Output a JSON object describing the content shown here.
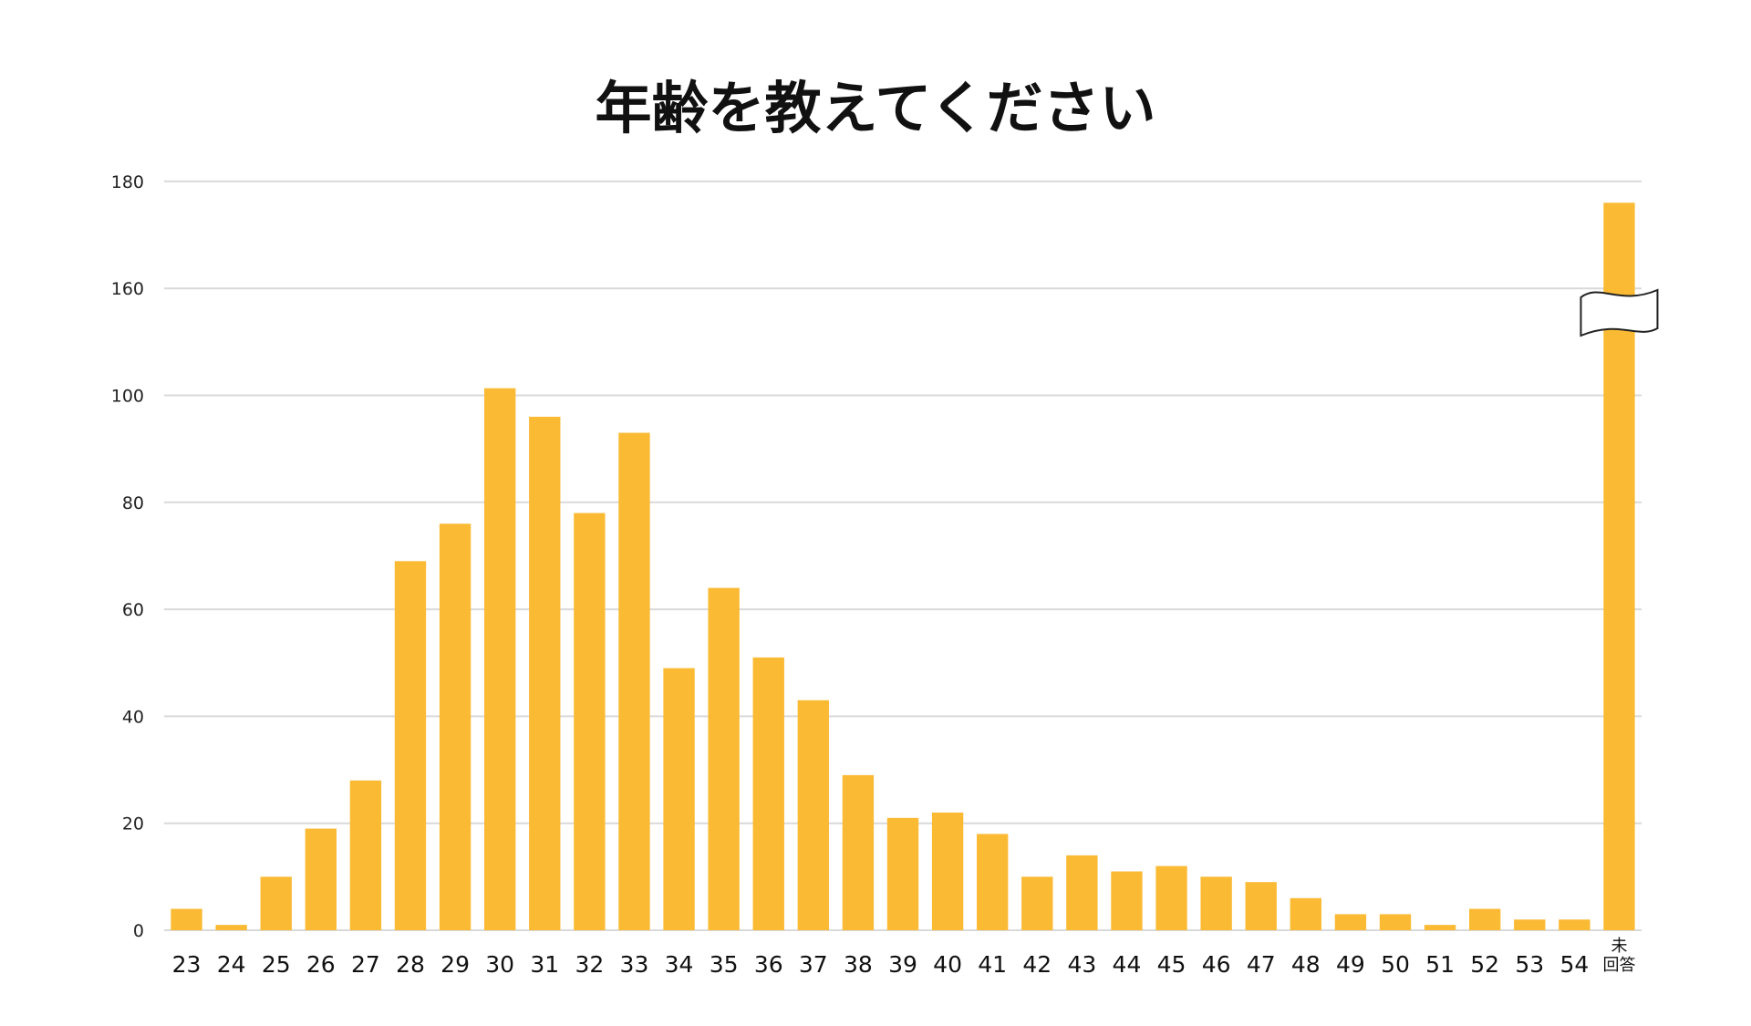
{
  "chart_data": {
    "type": "bar",
    "title": "年齢を教えてください",
    "xlabel": "",
    "ylabel": "",
    "y_tick_labels": [
      "0",
      "20",
      "40",
      "60",
      "80",
      "100",
      "160",
      "180"
    ],
    "axis_break": {
      "display_from": 100,
      "display_to": 160,
      "note": "broken y-axis between 100 and 160"
    },
    "categories": [
      "23",
      "24",
      "25",
      "26",
      "27",
      "28",
      "29",
      "30",
      "31",
      "32",
      "33",
      "34",
      "35",
      "36",
      "37",
      "38",
      "39",
      "40",
      "41",
      "42",
      "43",
      "44",
      "45",
      "46",
      "47",
      "48",
      "49",
      "50",
      "51",
      "52",
      "53",
      "54",
      "未回答"
    ],
    "values": [
      4,
      1,
      10,
      19,
      28,
      69,
      76,
      104,
      96,
      78,
      93,
      49,
      64,
      51,
      43,
      29,
      21,
      22,
      18,
      10,
      14,
      11,
      12,
      10,
      9,
      6,
      3,
      3,
      1,
      4,
      2,
      2,
      176
    ],
    "grid": true,
    "bar_color": "#FBBA34",
    "grid_color": "#d9d9d9"
  }
}
